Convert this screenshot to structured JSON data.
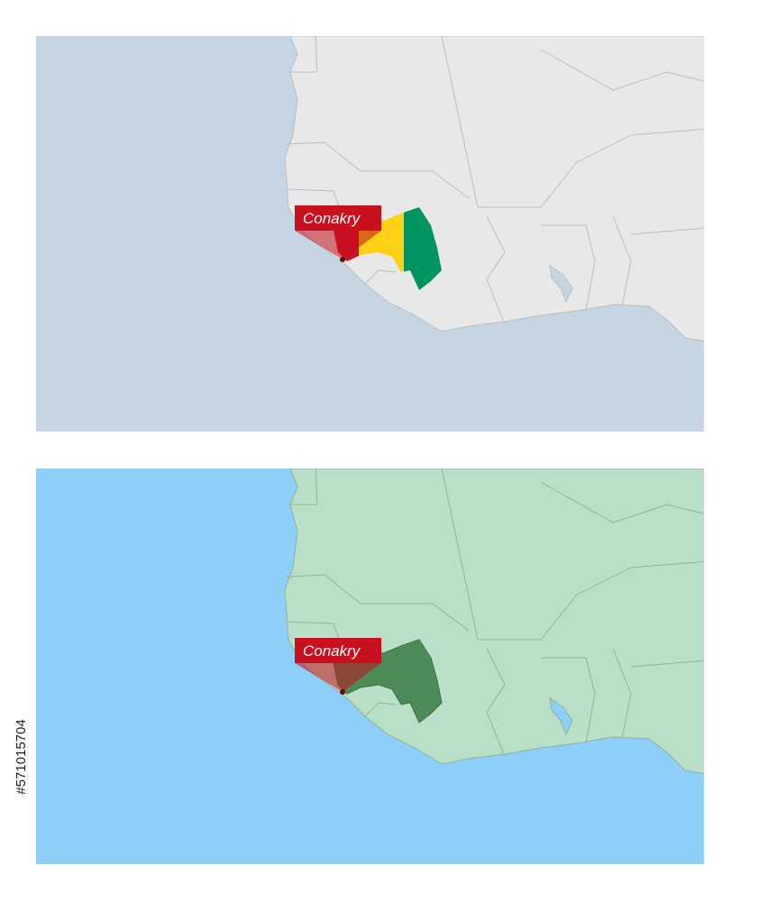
{
  "maps": [
    {
      "label": "Conakry"
    },
    {
      "label": "Conakry"
    }
  ],
  "image_id": "#571015704"
}
